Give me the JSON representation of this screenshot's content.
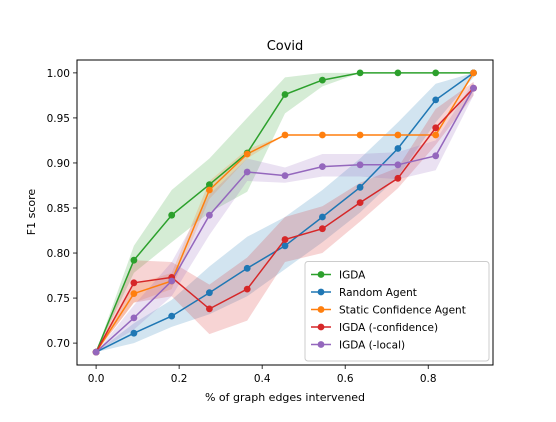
{
  "chart_data": {
    "type": "line",
    "title": "Covid",
    "xlabel": "% of graph edges intervened",
    "ylabel": "F1 score",
    "xlim": [
      -0.046,
      0.956
    ],
    "ylim": [
      0.6757,
      1.0143
    ],
    "xticks": [
      "0.0",
      "0.2",
      "0.4",
      "0.6",
      "0.8"
    ],
    "xtick_values": [
      0.0,
      0.2,
      0.4,
      0.6,
      0.8
    ],
    "yticks": [
      "0.70",
      "0.75",
      "0.80",
      "0.85",
      "0.90",
      "0.95",
      "1.00"
    ],
    "ytick_values": [
      0.7,
      0.75,
      0.8,
      0.85,
      0.9,
      0.95,
      1.0
    ],
    "grid": false,
    "legend_position": "lower-right",
    "x": [
      0.0,
      0.091,
      0.182,
      0.273,
      0.364,
      0.455,
      0.545,
      0.636,
      0.727,
      0.818,
      0.909
    ],
    "series": [
      {
        "name": "IGDA",
        "color": "#2ca02c",
        "values": [
          0.69,
          0.792,
          0.842,
          0.876,
          0.911,
          0.976,
          0.992,
          1.0,
          1.0,
          1.0,
          1.0
        ],
        "lower": [
          0.69,
          0.778,
          0.812,
          0.845,
          0.868,
          0.955,
          0.985,
          1.0,
          1.0,
          1.0,
          1.0
        ],
        "upper": [
          0.69,
          0.808,
          0.87,
          0.905,
          0.95,
          0.995,
          1.0,
          1.0,
          1.0,
          1.0,
          1.0
        ]
      },
      {
        "name": "Random Agent",
        "color": "#1f77b4",
        "values": [
          0.69,
          0.711,
          0.73,
          0.756,
          0.783,
          0.808,
          0.84,
          0.873,
          0.916,
          0.97,
          1.0
        ],
        "lower": [
          0.69,
          0.7,
          0.718,
          0.732,
          0.752,
          0.782,
          0.812,
          0.845,
          0.885,
          0.945,
          0.995
        ],
        "upper": [
          0.69,
          0.722,
          0.748,
          0.785,
          0.818,
          0.84,
          0.87,
          0.905,
          0.945,
          0.988,
          1.0
        ]
      },
      {
        "name": "Static Confidence Agent",
        "color": "#ff7f0e",
        "values": [
          0.69,
          0.755,
          0.769,
          0.87,
          0.91,
          0.931,
          0.931,
          0.931,
          0.931,
          0.931,
          1.0
        ],
        "lower": [
          0.69,
          0.745,
          0.76,
          0.86,
          0.905,
          0.931,
          0.931,
          0.931,
          0.931,
          0.931,
          1.0
        ],
        "upper": [
          0.69,
          0.765,
          0.778,
          0.88,
          0.915,
          0.931,
          0.931,
          0.931,
          0.931,
          0.931,
          1.0
        ]
      },
      {
        "name": "IGDA (-confidence)",
        "color": "#d62728",
        "values": [
          0.69,
          0.767,
          0.773,
          0.738,
          0.76,
          0.815,
          0.827,
          0.856,
          0.883,
          0.939,
          0.983
        ],
        "lower": [
          0.69,
          0.745,
          0.752,
          0.71,
          0.725,
          0.79,
          0.8,
          0.835,
          0.872,
          0.92,
          0.975
        ],
        "upper": [
          0.69,
          0.792,
          0.79,
          0.765,
          0.795,
          0.84,
          0.852,
          0.878,
          0.895,
          0.96,
          0.99
        ]
      },
      {
        "name": "IGDA (-local)",
        "color": "#9467bd",
        "values": [
          0.69,
          0.728,
          0.769,
          0.842,
          0.89,
          0.886,
          0.896,
          0.898,
          0.898,
          0.908,
          0.983
        ],
        "lower": [
          0.69,
          0.715,
          0.752,
          0.82,
          0.88,
          0.878,
          0.885,
          0.885,
          0.882,
          0.892,
          0.975
        ],
        "upper": [
          0.69,
          0.742,
          0.79,
          0.865,
          0.905,
          0.895,
          0.91,
          0.91,
          0.912,
          0.925,
          0.99
        ]
      }
    ]
  }
}
